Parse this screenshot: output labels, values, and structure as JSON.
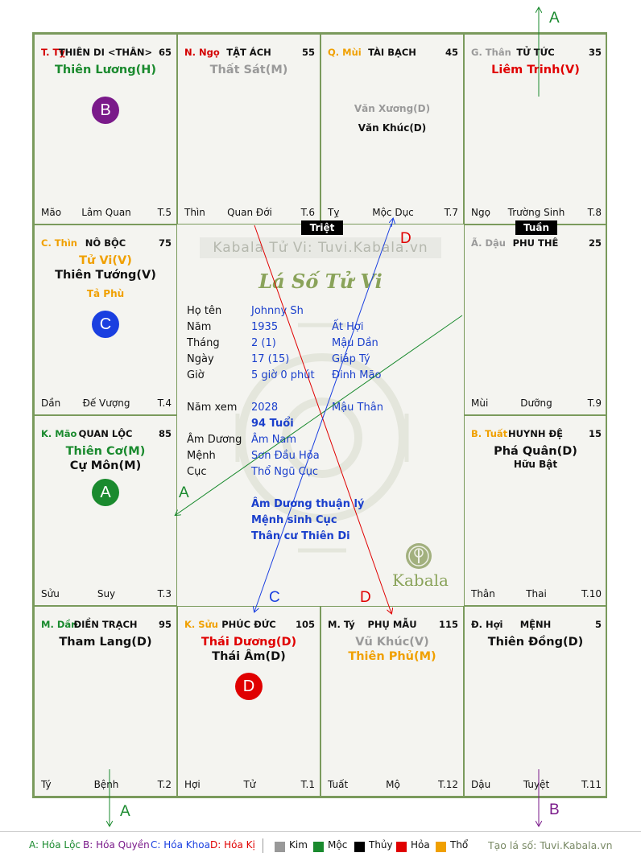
{
  "cells": [
    {
      "id": "ty",
      "code": "T. Tỵ",
      "code_color": "#d40000",
      "palace": "THIÊN DI <THÂN>",
      "age": "65",
      "stars": [
        {
          "t": "Thiên Lương(H)",
          "c": "#1a8a2e"
        }
      ],
      "minor": [],
      "foot_l": "Mão",
      "foot_m": "Lâm Quan",
      "foot_r": "T.5"
    },
    {
      "id": "ngo",
      "code": "N. Ngọ",
      "code_color": "#d40000",
      "palace": "TẬT ÁCH",
      "age": "55",
      "stars": [
        {
          "t": "Thất Sát(M)",
          "c": "#9a9a9a"
        }
      ],
      "minor": [],
      "foot_l": "Thìn",
      "foot_m": "Quan Đới",
      "foot_r": "T.6"
    },
    {
      "id": "mui",
      "code": "Q. Mùi",
      "code_color": "#f0a000",
      "palace": "TÀI BẠCH",
      "age": "45",
      "stars": [],
      "minor": [
        {
          "t": "Văn Xương(D)",
          "c": "#9a9a9a"
        },
        {
          "t": "Văn Khúc(D)",
          "c": "#111111"
        }
      ],
      "foot_l": "Tỵ",
      "foot_m": "Mộc Dục",
      "foot_r": "T.7"
    },
    {
      "id": "than",
      "code": "G. Thân",
      "code_color": "#9a9a9a",
      "palace": "TỬ TỨC",
      "age": "35",
      "stars": [
        {
          "t": "Liêm Trinh(V)",
          "c": "#e00000"
        }
      ],
      "minor": [],
      "foot_l": "Ngọ",
      "foot_m": "Trường Sinh",
      "foot_r": "T.8"
    },
    {
      "id": "thin",
      "code": "C. Thìn",
      "code_color": "#f0a000",
      "palace": "NÔ BỘC",
      "age": "75",
      "stars": [
        {
          "t": "Tử Vi(V)",
          "c": "#f0a000"
        },
        {
          "t": "Thiên Tướng(V)",
          "c": "#111111"
        }
      ],
      "minor": [
        {
          "t": "Tả Phù",
          "c": "#f0a000"
        }
      ],
      "foot_l": "Dần",
      "foot_m": "Đế Vượng",
      "foot_r": "T.4"
    },
    {
      "id": "dau",
      "code": "Ã. Dậu",
      "code_color": "#9a9a9a",
      "palace": "PHU THÊ",
      "age": "25",
      "stars": [],
      "minor": [],
      "foot_l": "Mùi",
      "foot_m": "Dưỡng",
      "foot_r": "T.9"
    },
    {
      "id": "mao",
      "code": "K. Mão",
      "code_color": "#1a8a2e",
      "palace": "QUAN LỘC",
      "age": "85",
      "stars": [
        {
          "t": "Thiên Cơ(M)",
          "c": "#1a8a2e"
        },
        {
          "t": "Cự Môn(M)",
          "c": "#111111"
        }
      ],
      "minor": [],
      "foot_l": "Sửu",
      "foot_m": "Suy",
      "foot_r": "T.3"
    },
    {
      "id": "tuat",
      "code": "B. Tuất",
      "code_color": "#f0a000",
      "palace": "HUYNH ĐỆ",
      "age": "15",
      "stars": [
        {
          "t": "Phá Quân(D)",
          "c": "#111111"
        }
      ],
      "minor": [
        {
          "t": "Hữu Bật",
          "c": "#111111"
        }
      ],
      "foot_l": "Thân",
      "foot_m": "Thai",
      "foot_r": "T.10"
    },
    {
      "id": "dan",
      "code": "M. Dần",
      "code_color": "#1a8a2e",
      "palace": "ĐIỀN TRẠCH",
      "age": "95",
      "stars": [
        {
          "t": "Tham Lang(D)",
          "c": "#111111"
        }
      ],
      "minor": [],
      "foot_l": "Tý",
      "foot_m": "Bệnh",
      "foot_r": "T.2"
    },
    {
      "id": "suu",
      "code": "K. Sửu",
      "code_color": "#f0a000",
      "palace": "PHÚC ĐỨC",
      "age": "105",
      "stars": [
        {
          "t": "Thái Dương(D)",
          "c": "#e00000"
        },
        {
          "t": "Thái Âm(D)",
          "c": "#111111"
        }
      ],
      "minor": [],
      "foot_l": "Hợi",
      "foot_m": "Tử",
      "foot_r": "T.1"
    },
    {
      "id": "tyrat",
      "code": "M. Tý",
      "code_color": "#111111",
      "palace": "PHỤ MẪU",
      "age": "115",
      "stars": [
        {
          "t": "Vũ Khúc(V)",
          "c": "#9a9a9a"
        },
        {
          "t": "Thiên Phủ(M)",
          "c": "#f0a000"
        }
      ],
      "minor": [],
      "foot_l": "Tuất",
      "foot_m": "Mộ",
      "foot_r": "T.12"
    },
    {
      "id": "hoi",
      "code": "Đ. Hợi",
      "code_color": "#111111",
      "palace": "MỆNH",
      "age": "5",
      "stars": [
        {
          "t": "Thiên Đồng(D)",
          "c": "#111111"
        }
      ],
      "minor": [],
      "foot_l": "Dậu",
      "foot_m": "Tuyệt",
      "foot_r": "T.11"
    }
  ],
  "badges": {
    "triet": "Triệt",
    "tuan": "Tuần"
  },
  "circles": {
    "B": "B",
    "C": "C",
    "A": "A",
    "D": "D"
  },
  "center": {
    "watermark": "Kabala Tử Vi: Tuvi.Kabala.vn",
    "title": "Lá Số Tử Vi",
    "name_label": "Họ tên",
    "name_value": "Johnny Sh",
    "year_label": "Năm",
    "year_value": "1935",
    "year_can": "Ất Hợi",
    "month_label": "Tháng",
    "month_value": "2  (1)",
    "month_can": "Mậu Dần",
    "day_label": "Ngày",
    "day_value": "17  (15)",
    "day_can": "Giáp Tý",
    "hour_label": "Giờ",
    "hour_value": "5 giờ 0 phút",
    "hour_can": "Đinh Mão",
    "view_label": "Năm xem",
    "view_value": "2028",
    "view_can": "Mậu Thân",
    "age_value": "94 Tuổi",
    "amduong_label": "Âm Dương",
    "amduong_value": "Âm Nam",
    "menh_label": "Mệnh",
    "menh_value": "Sơn Đầu Hỏa",
    "cuc_label": "Cục",
    "cuc_value": "Thổ Ngũ Cục",
    "note1": "Âm Dương thuận lý",
    "note2": "Mệnh sinh Cục",
    "note3": "Thân cư Thiên Di",
    "brand": "Kabala"
  },
  "arrow_labels": {
    "a_top": "A",
    "d_top": "D",
    "a_mid": "A",
    "c_bot": "C",
    "d_bot": "D",
    "a_bottom": "A",
    "b_bottom": "B"
  },
  "legend": {
    "a": "A: Hóa Lộc",
    "b": "B: Hóa Quyền",
    "c": "C: Hóa Khoa",
    "d": "D: Hóa Kị",
    "kim": "Kim",
    "moc": "Mộc",
    "thuy": "Thủy",
    "hoa": "Hỏa",
    "tho": "Thổ",
    "site": "Tạo lá số: Tuvi.Kabala.vn"
  },
  "colors": {
    "kim": "#999999",
    "moc": "#1a8a2e",
    "thuy": "#000000",
    "hoa": "#e00000",
    "tho": "#f0a000",
    "border": "#7a9a5c"
  }
}
